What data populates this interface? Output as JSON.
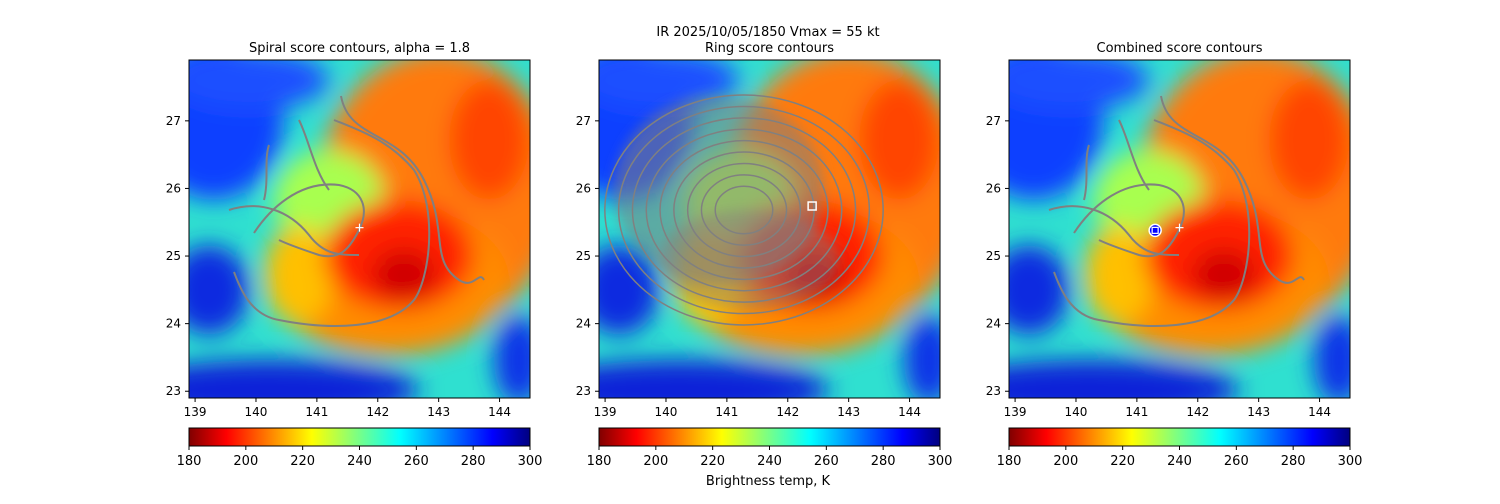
{
  "figure": {
    "suptitle_line1": "IR  2025/10/05/1850    Vmax = 55 kt",
    "colorbar_label": "Brightness temp, K"
  },
  "colorscale": {
    "min": 180,
    "max": 300,
    "ticks": [
      "180",
      "200",
      "220",
      "240",
      "260",
      "280",
      "300"
    ],
    "colormap": "jet reversed (low temps red, high temps blue)"
  },
  "chart_data": [
    {
      "type": "heatmap",
      "title": "Spiral score contours, alpha =  1.8",
      "xlim": [
        138.9,
        144.5
      ],
      "ylim": [
        22.9,
        27.9
      ],
      "xticks": [
        "139",
        "140",
        "141",
        "142",
        "143",
        "144"
      ],
      "yticks": [
        "23",
        "24",
        "25",
        "26",
        "27"
      ],
      "storm_center_cross": {
        "lon": 141.7,
        "lat": 25.42
      },
      "contour_color": "#808080",
      "colorbar": true
    },
    {
      "type": "heatmap",
      "title": "Ring score contours",
      "xlim": [
        138.9,
        144.5
      ],
      "ylim": [
        22.9,
        27.9
      ],
      "xticks": [
        "139",
        "140",
        "141",
        "142",
        "143",
        "144"
      ],
      "yticks": [
        "23",
        "24",
        "25",
        "26",
        "27"
      ],
      "best_ring_marker": {
        "lon": 142.4,
        "lat": 25.74
      },
      "contour_color": "#808080",
      "colorbar": true
    },
    {
      "type": "heatmap",
      "title": "Combined score contours",
      "xlim": [
        138.9,
        144.5
      ],
      "ylim": [
        22.9,
        27.9
      ],
      "xticks": [
        "139",
        "140",
        "141",
        "142",
        "143",
        "144"
      ],
      "yticks": [
        "23",
        "24",
        "25",
        "26",
        "27"
      ],
      "storm_center_cross": {
        "lon": 141.7,
        "lat": 25.42
      },
      "best_combined_marker": {
        "lon": 141.3,
        "lat": 25.38
      },
      "contour_color": "#808080",
      "colorbar": true
    }
  ]
}
